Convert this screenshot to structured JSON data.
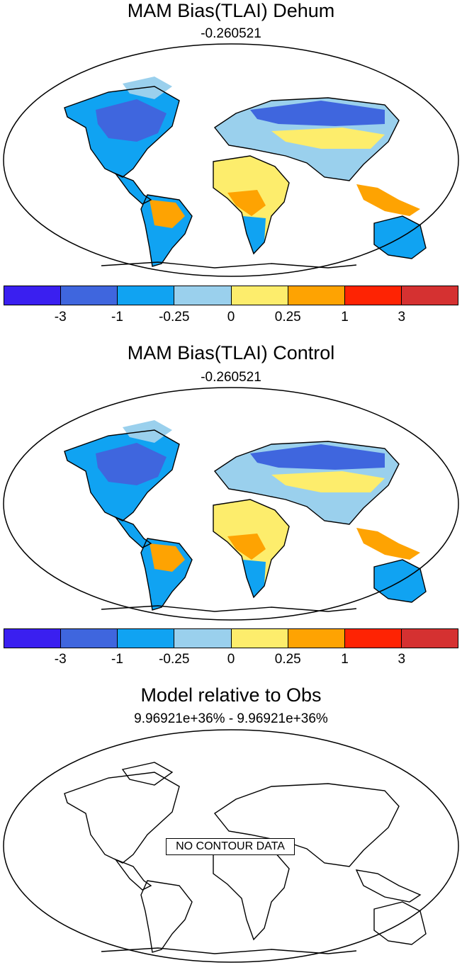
{
  "panels": [
    {
      "title": "MAM Bias(TLAI) Dehum",
      "subtitle": "-0.260521"
    },
    {
      "title": "MAM Bias(TLAI) Control",
      "subtitle": "-0.260521"
    },
    {
      "title": "Model relative to Obs",
      "subtitle": "9.96921e+36% - 9.96921e+36%",
      "no_data_label": "NO CONTOUR DATA"
    }
  ],
  "colorbar": {
    "colors": [
      "#3a1ff0",
      "#3f66de",
      "#10a3f2",
      "#9ad0ed",
      "#fded6c",
      "#fea302",
      "#fe2303",
      "#d53131"
    ],
    "labels": [
      "-3",
      "-1",
      "-0.25",
      "0",
      "0.25",
      "1",
      "3"
    ]
  }
}
